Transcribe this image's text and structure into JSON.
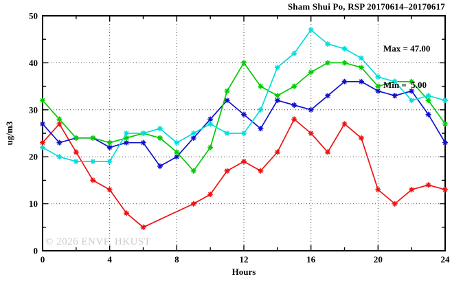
{
  "title": "Sham Shui Po, RSP 20170614–20170617",
  "annotation": {
    "max_label": "Max = 47.00",
    "min_label": "Min =  5.00"
  },
  "watermark": "© 2026 ENVF, HKUST",
  "chart_data": {
    "type": "line",
    "title": "Sham Shui Po, RSP 20170614–20170617",
    "xlabel": "Hours",
    "ylabel": "ug/m3",
    "xlim": [
      0,
      24
    ],
    "ylim": [
      0,
      50
    ],
    "x_major_ticks": [
      0,
      4,
      8,
      12,
      16,
      20,
      24
    ],
    "x_minor_step": 2,
    "y_major_ticks": [
      0,
      10,
      20,
      30,
      40,
      50
    ],
    "y_minor_step": 5,
    "grid_x": [
      4,
      8,
      12,
      16,
      20
    ],
    "grid_y": [
      10,
      20,
      30,
      40
    ],
    "grid": "dotted",
    "legend_position": "none (max/min annotation top-right)",
    "max": 47.0,
    "min": 5.0,
    "x": [
      0,
      1,
      2,
      3,
      4,
      5,
      6,
      7,
      8,
      9,
      10,
      11,
      12,
      13,
      14,
      15,
      16,
      17,
      18,
      19,
      20,
      21,
      22,
      23,
      24
    ],
    "series": [
      {
        "name": "series-red",
        "color": "#ee1111",
        "values": [
          23,
          27,
          21,
          15,
          13,
          8,
          5,
          null,
          null,
          10,
          12,
          17,
          19,
          17,
          21,
          28,
          25,
          21,
          27,
          24,
          13,
          10,
          13,
          14,
          13
        ]
      },
      {
        "name": "series-blue",
        "color": "#1111cc",
        "values": [
          27,
          23,
          24,
          24,
          22,
          23,
          23,
          18,
          20,
          24,
          28,
          32,
          29,
          26,
          32,
          31,
          30,
          33,
          36,
          36,
          34,
          33,
          34,
          29,
          23
        ]
      },
      {
        "name": "series-green",
        "color": "#00cc00",
        "values": [
          32,
          28,
          24,
          24,
          23,
          24,
          25,
          24,
          21,
          17,
          22,
          34,
          40,
          35,
          33,
          35,
          38,
          40,
          40,
          39,
          35,
          36,
          36,
          32,
          27
        ]
      },
      {
        "name": "series-cyan",
        "color": "#00dede",
        "values": [
          22,
          20,
          19,
          19,
          19,
          25,
          25,
          26,
          23,
          25,
          27,
          25,
          25,
          30,
          39,
          42,
          47,
          44,
          43,
          41,
          37,
          36,
          32,
          33,
          32
        ]
      }
    ]
  }
}
